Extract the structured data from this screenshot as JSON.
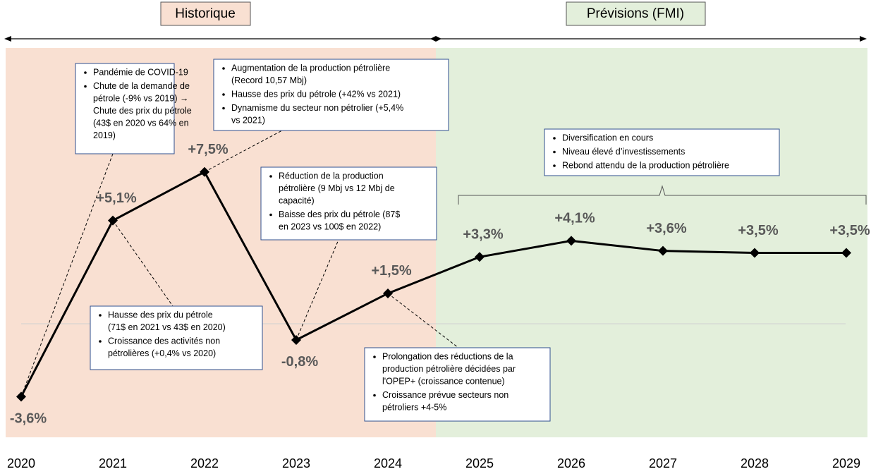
{
  "chart_data": {
    "type": "line",
    "categories": [
      "2020",
      "2021",
      "2022",
      "2023",
      "2024",
      "2025",
      "2026",
      "2027",
      "2028",
      "2029"
    ],
    "values": [
      -3.6,
      5.1,
      7.5,
      -0.8,
      1.5,
      3.3,
      4.1,
      3.6,
      3.5,
      3.5
    ],
    "value_labels": [
      "-3,6%",
      "+5,1%",
      "+7,5%",
      "-0,8%",
      "+1,5%",
      "+3,3%",
      "+4,1%",
      "+3,6%",
      "+3,5%",
      "+3,5%"
    ],
    "color": "#000000",
    "regions": [
      "Historique",
      "Prévisions (FMI)"
    ],
    "annotations": [
      {
        "bullets": [
          [
            "Pandémie de COVID-19"
          ],
          [
            "Chute de la demande de",
            "pétrole (-9% vs 2019) →",
            "Chute des prix du pétrole",
            "(43$ en 2020 vs 64% en",
            "2019)"
          ]
        ]
      },
      {
        "bullets": [
          [
            "Augmentation de la production pétrolière",
            "(Record 10,57 Mbj)"
          ],
          [
            "Hausse des prix du pétrole (+42% vs 2021)"
          ],
          [
            "Dynamisme du secteur non pétrolier (+5,4%",
            "vs 2021)"
          ]
        ]
      },
      {
        "bullets": [
          [
            "Hausse des prix du pétrole",
            "(71$ en 2021 vs 43$ en 2020)"
          ],
          [
            "Croissance des activités non",
            "pétrolières (+0,4% vs 2020)"
          ]
        ]
      },
      {
        "bullets": [
          [
            "Réduction de la production",
            "pétrolière (9 Mbj vs 12 Mbj de",
            "capacité)"
          ],
          [
            "Baisse des prix du pétrole (87$",
            "en 2023 vs 100$ en 2022)"
          ]
        ]
      },
      {
        "bullets": [
          [
            "Prolongation des réductions de la",
            "production pétrolière décidées par",
            "l'OPEP+ (croissance contenue)"
          ],
          [
            "Croissance prévue secteurs non",
            "pétroliers +4-5%"
          ]
        ]
      },
      {
        "bullets": [
          [
            "Diversification en cours"
          ],
          [
            "Niveau élevé d’investissements"
          ],
          [
            "Rebond attendu de la production pétrolière"
          ]
        ]
      }
    ]
  }
}
